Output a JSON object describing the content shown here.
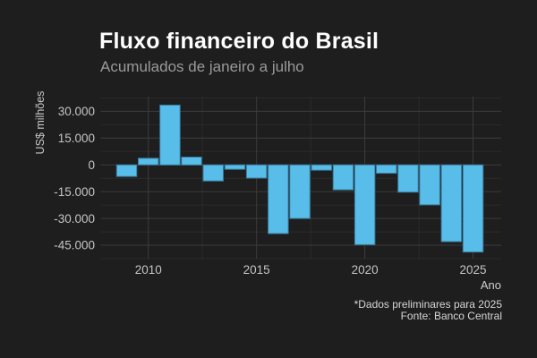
{
  "chart_data": {
    "type": "bar",
    "title": "Fluxo financeiro do Brasil",
    "subtitle": "Acumulados de janeiro a julho",
    "xlabel": "Ano",
    "ylabel": "US$ milhões",
    "caption": [
      "*Dados preliminares para 2025",
      "Fonte: Banco Central"
    ],
    "unit": "US$ milhões",
    "categories": [
      2009,
      2010,
      2011,
      2012,
      2013,
      2014,
      2015,
      2016,
      2017,
      2018,
      2019,
      2020,
      2021,
      2022,
      2023,
      2024,
      2025
    ],
    "values": [
      -6500,
      3700,
      33500,
      4400,
      -9000,
      -2500,
      -7400,
      -38500,
      -30000,
      -3000,
      -14000,
      -44700,
      -4700,
      -15300,
      -22400,
      -43000,
      -48800
    ],
    "y_ticks": {
      "values": [
        30000,
        15000,
        0,
        -15000,
        -30000,
        -45000
      ],
      "labels": [
        "30.000",
        "15.000",
        "0",
        "-15.000",
        "-30.000",
        "-45.000"
      ]
    },
    "x_ticks": {
      "values": [
        2010,
        2015,
        2020,
        2025
      ],
      "labels": [
        "2010",
        "2015",
        "2020",
        "2025"
      ]
    },
    "y_minor": [
      37500,
      22500,
      7500,
      -7500,
      -22500,
      -37500,
      -52500
    ],
    "x_minor": [
      2012.5,
      2017.5,
      2022.5
    ],
    "ylim": [
      -52500,
      38200
    ],
    "xlim": [
      2007.8,
      2026.3
    ],
    "grid": true,
    "legend": "none",
    "colors": {
      "background": "#1E1E1E",
      "bar": "#58BEE9",
      "bar_edge": "#38789B",
      "grid_major": "#3C3C3C",
      "grid_minor": "#2B2B2B",
      "title_text": "#FFFFFF",
      "subtitle_text": "#9A9A9A",
      "tick_text": "#C4C4C4",
      "axis_title_text": "#CFCFCF",
      "caption_text": "#D6D6D6"
    }
  }
}
